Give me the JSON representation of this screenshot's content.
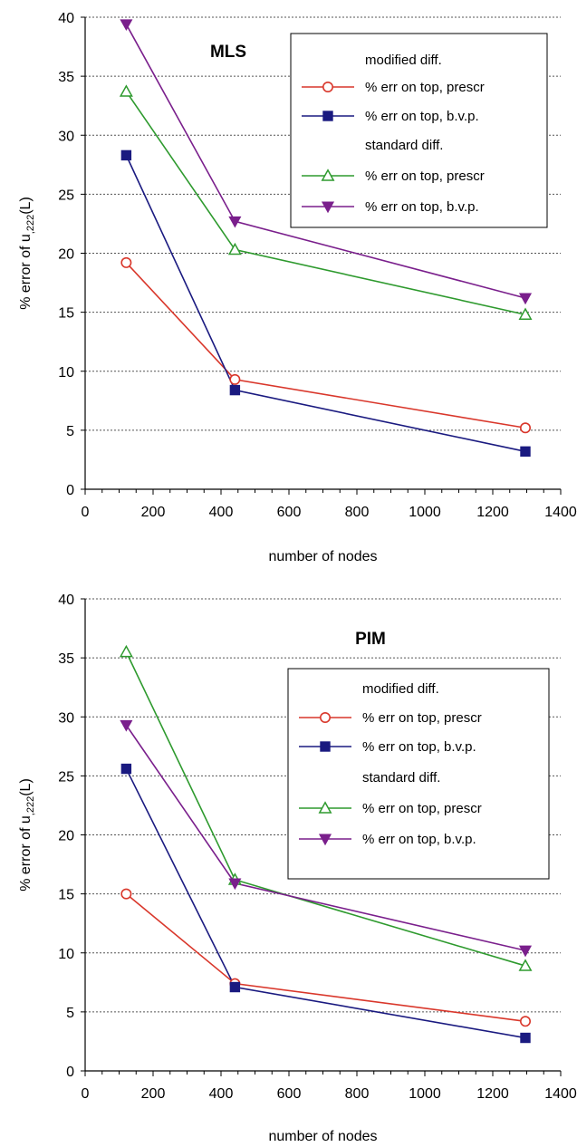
{
  "chart_data": [
    {
      "type": "line",
      "title": "MLS",
      "xlabel": "number of nodes",
      "ylabel_main": "% error of u",
      "ylabel_sub": ",222",
      "ylabel_tail": "(L)",
      "xlim": [
        0,
        1400
      ],
      "ylim": [
        0,
        40
      ],
      "xticks": [
        0,
        200,
        400,
        600,
        800,
        1000,
        1200,
        1400
      ],
      "yticks": [
        0,
        5,
        10,
        15,
        20,
        25,
        30,
        35,
        40
      ],
      "grid": "horizontal dotted",
      "legend_position": "top-right",
      "legend_headers": [
        "modified diff.",
        "standard diff."
      ],
      "x": [
        121,
        441,
        1296
      ],
      "series": [
        {
          "name": "% err on top, prescr",
          "group": "modified diff.",
          "color": "#d9372b",
          "marker": "circle-open",
          "values": [
            19.2,
            9.3,
            5.2
          ]
        },
        {
          "name": "% err on top, b.v.p.",
          "group": "modified diff.",
          "color": "#1a1a80",
          "marker": "square-filled",
          "values": [
            28.3,
            8.4,
            3.2
          ]
        },
        {
          "name": "% err on top, prescr",
          "group": "standard diff.",
          "color": "#2e9a2e",
          "marker": "triangle-up-open",
          "values": [
            33.7,
            20.3,
            14.8
          ]
        },
        {
          "name": "% err on top, b.v.p.",
          "group": "standard diff.",
          "color": "#7a1f8c",
          "marker": "triangle-down-filled",
          "values": [
            39.4,
            22.7,
            16.2
          ]
        }
      ]
    },
    {
      "type": "line",
      "title": "PIM",
      "xlabel": "number of  nodes",
      "ylabel_main": "% error of u",
      "ylabel_sub": ",222",
      "ylabel_tail": "(L)",
      "xlim": [
        0,
        1400
      ],
      "ylim": [
        0,
        40
      ],
      "xticks": [
        0,
        200,
        400,
        600,
        800,
        1000,
        1200,
        1400
      ],
      "yticks": [
        0,
        5,
        10,
        15,
        20,
        25,
        30,
        35,
        40
      ],
      "grid": "horizontal dotted",
      "legend_position": "right",
      "legend_headers": [
        "modified diff.",
        "standard diff."
      ],
      "x": [
        121,
        441,
        1296
      ],
      "series": [
        {
          "name": "% err on top, prescr",
          "group": "modified diff.",
          "color": "#d9372b",
          "marker": "circle-open",
          "values": [
            15.0,
            7.4,
            4.2
          ]
        },
        {
          "name": "% err on top, b.v.p.",
          "group": "modified diff.",
          "color": "#1a1a80",
          "marker": "square-filled",
          "values": [
            25.6,
            7.1,
            2.8
          ]
        },
        {
          "name": "% err on top, prescr",
          "group": "standard diff.",
          "color": "#2e9a2e",
          "marker": "triangle-up-open",
          "values": [
            35.5,
            16.2,
            8.9
          ]
        },
        {
          "name": "% err on top, b.v.p.",
          "group": "standard diff.",
          "color": "#7a1f8c",
          "marker": "triangle-down-filled",
          "values": [
            29.3,
            15.9,
            10.2
          ]
        }
      ]
    }
  ]
}
